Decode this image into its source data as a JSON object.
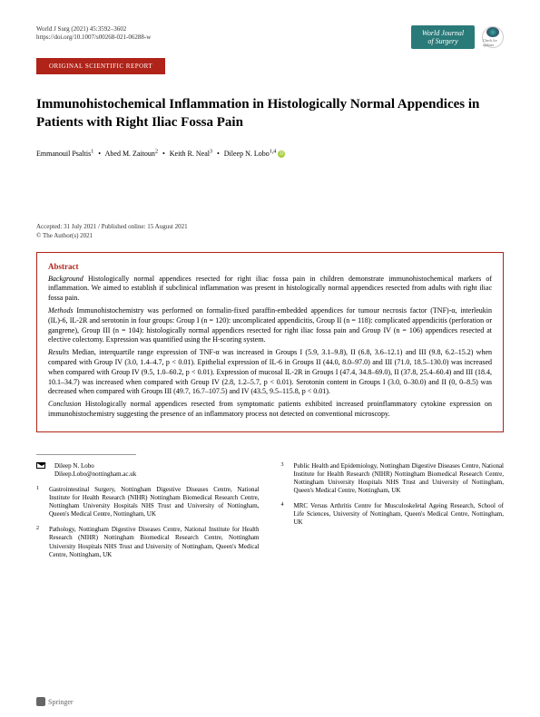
{
  "header": {
    "citation_line1": "World J Surg (2021) 45:3592–3602",
    "citation_line2": "https://doi.org/10.1007/s00268-021-06288-w",
    "journal_name": "World Journal of Surgery",
    "check_label": "Check for updates"
  },
  "section_badge": "ORIGINAL SCIENTIFIC REPORT",
  "title": "Immunohistochemical Inflammation in Histologically Normal Appendices in Patients with Right Iliac Fossa Pain",
  "authors": [
    {
      "name": "Emmanouil Psaltis",
      "sup": "1"
    },
    {
      "name": "Abed M. Zaitoun",
      "sup": "2"
    },
    {
      "name": "Keith R. Neal",
      "sup": "3"
    },
    {
      "name": "Dileep N. Lobo",
      "sup": "1,4",
      "orcid": true
    }
  ],
  "dates": "Accepted: 31 July 2021 / Published online: 15 August 2021",
  "copyright": "© The Author(s) 2021",
  "abstract": {
    "heading": "Abstract",
    "background": "Background Histologically normal appendices resected for right iliac fossa pain in children demonstrate immunohistochemical markers of inflammation. We aimed to establish if subclinical inflammation was present in histologically normal appendices resected from adults with right iliac fossa pain.",
    "methods": "Methods Immunohistochemistry was performed on formalin-fixed paraffin-embedded appendices for tumour necrosis factor (TNF)-α, interleukin (IL)-6, IL-2R and serotonin in four groups: Group I (n = 120): uncomplicated appendicitis, Group II (n = 118): complicated appendicitis (perforation or gangrene), Group III (n = 104): histologically normal appendices resected for right iliac fossa pain and Group IV (n = 106) appendices resected at elective colectomy. Expression was quantified using the H-scoring system.",
    "results": "Results Median, interquartile range expression of TNF-α was increased in Groups I (5.9, 3.1–9.8), II (6.8, 3.6–12.1) and III (9.8, 6.2–15.2) when compared with Group IV (3.0, 1.4–4.7, p < 0.01). Epithelial expression of IL-6 in Groups II (44.0, 8.0–97.0) and III (71.0, 18.5–130.0) was increased when compared with Group IV (9.5, 1.0–60.2, p < 0.01). Expression of mucosal IL-2R in Groups I (47.4, 34.8–69.0), II (37.8, 25.4–60.4) and III (18.4, 10.1–34.7) was increased when compared with Group IV (2.8, 1.2–5.7, p < 0.01). Serotonin content in Groups I (3.0, 0–30.0) and II (0, 0–8.5) was decreased when compared with Groups III (49.7, 16.7–107.5) and IV (43.5, 9.5–115.8, p < 0.01).",
    "conclusion": "Conclusion Histologically normal appendices resected from symptomatic patients exhibited increased proinflammatory cytokine expression on immunohistochemistry suggesting the presence of an inflammatory process not detected on conventional microscopy."
  },
  "correspondence": {
    "name": "Dileep N. Lobo",
    "email": "Dileep.Lobo@nottingham.ac.uk"
  },
  "affiliations": [
    {
      "num": "1",
      "text": "Gastrointestinal Surgery, Nottingham Digestive Diseases Centre, National Institute for Health Research (NIHR) Nottingham Biomedical Research Centre, Nottingham University Hospitals NHS Trust and University of Nottingham, Queen's Medical Centre, Nottingham, UK"
    },
    {
      "num": "2",
      "text": "Pathology, Nottingham Digestive Diseases Centre, National Institute for Health Research (NIHR) Nottingham Biomedical Research Centre, Nottingham University Hospitals NHS Trust and University of Nottingham, Queen's Medical Centre, Nottingham, UK"
    },
    {
      "num": "3",
      "text": "Public Health and Epidemiology, Nottingham Digestive Diseases Centre, National Institute for Health Research (NIHR) Nottingham Biomedical Research Centre, Nottingham University Hospitals NHS Trust and University of Nottingham, Queen's Medical Centre, Nottingham, UK"
    },
    {
      "num": "4",
      "text": "MRC Versus Arthritis Centre for Musculoskeletal Ageing Research, School of Life Sciences, University of Nottingham, Queen's Medical Centre, Nottingham, UK"
    }
  ],
  "publisher": "Springer",
  "colors": {
    "badge_red": "#b02318",
    "journal_teal": "#2a7a79",
    "orcid_green": "#a6ce39"
  }
}
